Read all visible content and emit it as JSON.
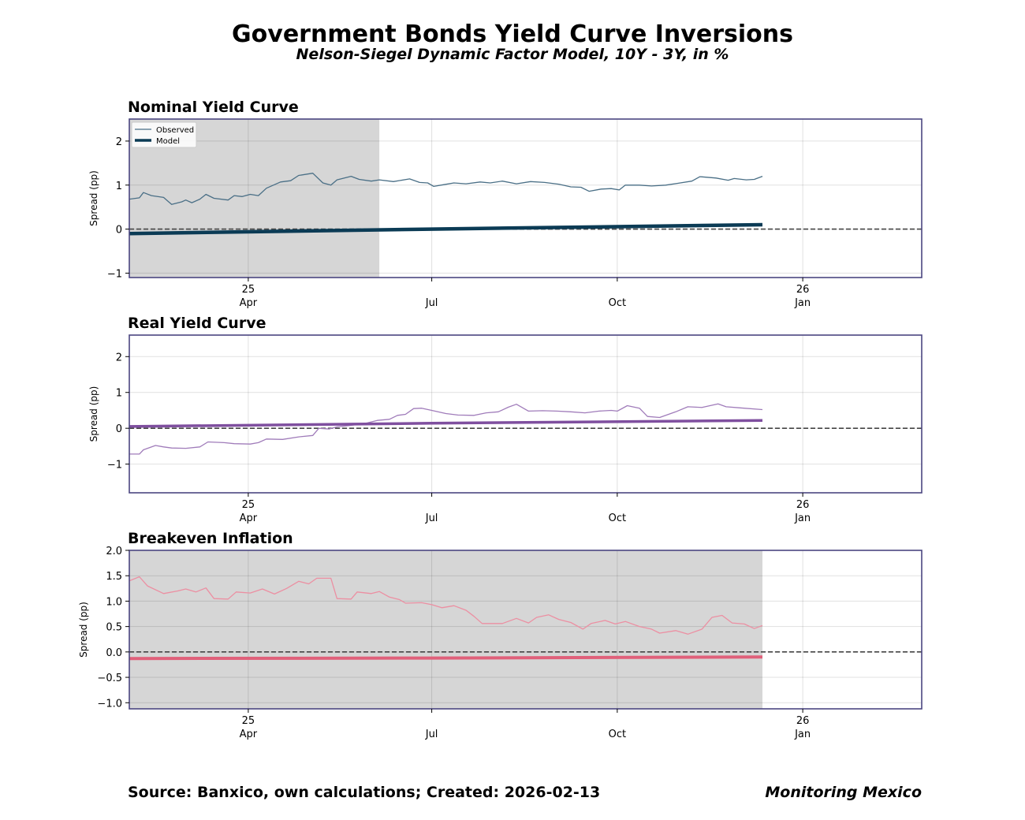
{
  "title": "Government Bonds Yield Curve Inversions",
  "subtitle": "Nelson-Siegel Dynamic Factor Model, 10Y - 3Y, in %",
  "footer": {
    "source": "Source: Banxico, own calculations; Created: 2026-02-13",
    "brand": "Monitoring Mexico"
  },
  "colors": {
    "frame": "#4b4680",
    "nominal": "#0b3b55",
    "nominal_observed": "#4a6f86",
    "real": "#7f4f9f",
    "real_observed": "#a07cba",
    "breakeven": "#e0607a",
    "breakeven_observed": "#ec8fa2",
    "shade": "#d6d6d6",
    "zero_line": "#444444",
    "grid": "#dddddd"
  },
  "chart_data": [
    {
      "type": "line",
      "title": "Nominal Yield Curve",
      "ylabel": "Spread (pp)",
      "xlim": [
        "2025-02-01",
        "2026-03-01"
      ],
      "ylim": [
        -1.1,
        2.5
      ],
      "yticks": [
        -1,
        0,
        1,
        2
      ],
      "xticks": [
        {
          "date": "2025-04-01",
          "labels": [
            "25",
            "Apr"
          ]
        },
        {
          "date": "2025-07-01",
          "labels": [
            "",
            "Jul"
          ]
        },
        {
          "date": "2025-10-01",
          "labels": [
            "",
            "Oct"
          ]
        },
        {
          "date": "2026-01-01",
          "labels": [
            "26",
            "Jan"
          ]
        }
      ],
      "grid": true,
      "zero_line": true,
      "legend": {
        "position": "top-left",
        "entries": [
          "Observed",
          "Model"
        ]
      },
      "shaded_range": [
        "2025-02-01",
        "2025-06-05"
      ],
      "series": [
        {
          "name": "Observed",
          "color": "#4a6f86",
          "width": 1.3,
          "points": [
            [
              "2025-02-01",
              0.68
            ],
            [
              "2025-02-06",
              0.71
            ],
            [
              "2025-02-08",
              0.83
            ],
            [
              "2025-02-12",
              0.76
            ],
            [
              "2025-02-18",
              0.72
            ],
            [
              "2025-02-22",
              0.56
            ],
            [
              "2025-02-27",
              0.62
            ],
            [
              "2025-03-01",
              0.66
            ],
            [
              "2025-03-04",
              0.6
            ],
            [
              "2025-03-08",
              0.68
            ],
            [
              "2025-03-11",
              0.79
            ],
            [
              "2025-03-15",
              0.7
            ],
            [
              "2025-03-22",
              0.66
            ],
            [
              "2025-03-25",
              0.76
            ],
            [
              "2025-03-29",
              0.74
            ],
            [
              "2025-04-02",
              0.79
            ],
            [
              "2025-04-06",
              0.76
            ],
            [
              "2025-04-10",
              0.93
            ],
            [
              "2025-04-17",
              1.07
            ],
            [
              "2025-04-22",
              1.1
            ],
            [
              "2025-04-26",
              1.22
            ],
            [
              "2025-05-03",
              1.27
            ],
            [
              "2025-05-08",
              1.05
            ],
            [
              "2025-05-12",
              1.0
            ],
            [
              "2025-05-15",
              1.12
            ],
            [
              "2025-05-22",
              1.2
            ],
            [
              "2025-05-26",
              1.13
            ],
            [
              "2025-06-01",
              1.09
            ],
            [
              "2025-06-05",
              1.12
            ],
            [
              "2025-06-12",
              1.08
            ],
            [
              "2025-06-20",
              1.14
            ],
            [
              "2025-06-25",
              1.06
            ],
            [
              "2025-06-29",
              1.05
            ],
            [
              "2025-07-02",
              0.97
            ],
            [
              "2025-07-07",
              1.01
            ],
            [
              "2025-07-12",
              1.05
            ],
            [
              "2025-07-18",
              1.03
            ],
            [
              "2025-07-25",
              1.07
            ],
            [
              "2025-07-30",
              1.05
            ],
            [
              "2025-08-05",
              1.09
            ],
            [
              "2025-08-12",
              1.03
            ],
            [
              "2025-08-19",
              1.08
            ],
            [
              "2025-08-26",
              1.06
            ],
            [
              "2025-09-02",
              1.02
            ],
            [
              "2025-09-08",
              0.96
            ],
            [
              "2025-09-13",
              0.95
            ],
            [
              "2025-09-17",
              0.86
            ],
            [
              "2025-09-23",
              0.91
            ],
            [
              "2025-09-28",
              0.92
            ],
            [
              "2025-10-02",
              0.89
            ],
            [
              "2025-10-05",
              1.0
            ],
            [
              "2025-10-12",
              1.0
            ],
            [
              "2025-10-18",
              0.98
            ],
            [
              "2025-10-25",
              1.0
            ],
            [
              "2025-10-31",
              1.04
            ],
            [
              "2025-11-07",
              1.09
            ],
            [
              "2025-11-11",
              1.19
            ],
            [
              "2025-11-19",
              1.16
            ],
            [
              "2025-11-25",
              1.11
            ],
            [
              "2025-11-28",
              1.15
            ],
            [
              "2025-12-04",
              1.12
            ],
            [
              "2025-12-08",
              1.13
            ],
            [
              "2025-12-12",
              1.2
            ]
          ]
        },
        {
          "name": "Model",
          "color": "#0b3b55",
          "width": 4.5,
          "points": [
            [
              "2025-02-01",
              -0.1
            ],
            [
              "2025-06-30",
              0.0
            ],
            [
              "2025-12-12",
              0.1
            ]
          ]
        }
      ]
    },
    {
      "type": "line",
      "title": "Real Yield Curve",
      "ylabel": "Spread (pp)",
      "xlim": [
        "2025-02-01",
        "2026-03-01"
      ],
      "ylim": [
        -1.8,
        2.6
      ],
      "yticks": [
        -1,
        0,
        1,
        2
      ],
      "xticks": [
        {
          "date": "2025-04-01",
          "labels": [
            "25",
            "Apr"
          ]
        },
        {
          "date": "2025-07-01",
          "labels": [
            "",
            "Jul"
          ]
        },
        {
          "date": "2025-10-01",
          "labels": [
            "",
            "Oct"
          ]
        },
        {
          "date": "2026-01-01",
          "labels": [
            "26",
            "Jan"
          ]
        }
      ],
      "grid": true,
      "zero_line": true,
      "series": [
        {
          "name": "Observed",
          "color": "#a07cba",
          "width": 1.3,
          "points": [
            [
              "2025-02-01",
              -0.72
            ],
            [
              "2025-02-06",
              -0.72
            ],
            [
              "2025-02-08",
              -0.6
            ],
            [
              "2025-02-14",
              -0.48
            ],
            [
              "2025-02-18",
              -0.52
            ],
            [
              "2025-02-22",
              -0.55
            ],
            [
              "2025-03-01",
              -0.56
            ],
            [
              "2025-03-08",
              -0.52
            ],
            [
              "2025-03-12",
              -0.38
            ],
            [
              "2025-03-20",
              -0.4
            ],
            [
              "2025-03-25",
              -0.43
            ],
            [
              "2025-04-02",
              -0.44
            ],
            [
              "2025-04-06",
              -0.4
            ],
            [
              "2025-04-10",
              -0.3
            ],
            [
              "2025-04-18",
              -0.31
            ],
            [
              "2025-04-26",
              -0.24
            ],
            [
              "2025-05-03",
              -0.2
            ],
            [
              "2025-05-06",
              0.0
            ],
            [
              "2025-05-11",
              -0.02
            ],
            [
              "2025-05-15",
              0.04
            ],
            [
              "2025-05-22",
              0.08
            ],
            [
              "2025-05-30",
              0.15
            ],
            [
              "2025-06-04",
              0.22
            ],
            [
              "2025-06-10",
              0.25
            ],
            [
              "2025-06-14",
              0.36
            ],
            [
              "2025-06-18",
              0.39
            ],
            [
              "2025-06-22",
              0.55
            ],
            [
              "2025-06-26",
              0.56
            ],
            [
              "2025-07-01",
              0.5
            ],
            [
              "2025-07-08",
              0.41
            ],
            [
              "2025-07-14",
              0.37
            ],
            [
              "2025-07-22",
              0.36
            ],
            [
              "2025-07-28",
              0.43
            ],
            [
              "2025-08-03",
              0.46
            ],
            [
              "2025-08-08",
              0.59
            ],
            [
              "2025-08-12",
              0.67
            ],
            [
              "2025-08-18",
              0.48
            ],
            [
              "2025-08-25",
              0.49
            ],
            [
              "2025-09-01",
              0.48
            ],
            [
              "2025-09-08",
              0.46
            ],
            [
              "2025-09-15",
              0.43
            ],
            [
              "2025-09-22",
              0.48
            ],
            [
              "2025-09-28",
              0.5
            ],
            [
              "2025-10-01",
              0.48
            ],
            [
              "2025-10-06",
              0.63
            ],
            [
              "2025-10-12",
              0.56
            ],
            [
              "2025-10-16",
              0.33
            ],
            [
              "2025-10-22",
              0.3
            ],
            [
              "2025-10-30",
              0.46
            ],
            [
              "2025-11-05",
              0.6
            ],
            [
              "2025-11-12",
              0.58
            ],
            [
              "2025-11-20",
              0.68
            ],
            [
              "2025-11-24",
              0.6
            ],
            [
              "2025-12-01",
              0.57
            ],
            [
              "2025-12-12",
              0.52
            ]
          ]
        },
        {
          "name": "Model",
          "color": "#7f4f9f",
          "width": 3.5,
          "points": [
            [
              "2025-02-01",
              0.05
            ],
            [
              "2025-07-01",
              0.14
            ],
            [
              "2025-12-12",
              0.22
            ]
          ]
        }
      ]
    },
    {
      "type": "line",
      "title": "Breakeven Inflation",
      "ylabel": "Spread (pp)",
      "xlim": [
        "2025-02-01",
        "2026-03-01"
      ],
      "ylim": [
        -1.12,
        2.0
      ],
      "yticks": [
        -1.0,
        -0.5,
        0.0,
        0.5,
        1.0,
        1.5,
        2.0
      ],
      "yticklabels": [
        "−1.0",
        "−0.5",
        "0.0",
        "0.5",
        "1.0",
        "1.5",
        "2.0"
      ],
      "xticks": [
        {
          "date": "2025-04-01",
          "labels": [
            "25",
            "Apr"
          ]
        },
        {
          "date": "2025-07-01",
          "labels": [
            "",
            "Jul"
          ]
        },
        {
          "date": "2025-10-01",
          "labels": [
            "",
            "Oct"
          ]
        },
        {
          "date": "2026-01-01",
          "labels": [
            "26",
            "Jan"
          ]
        }
      ],
      "grid": true,
      "zero_line": true,
      "shaded_range": [
        "2025-02-01",
        "2025-12-12"
      ],
      "series": [
        {
          "name": "Observed",
          "color": "#ec8fa2",
          "width": 1.3,
          "points": [
            [
              "2025-02-01",
              1.4
            ],
            [
              "2025-02-06",
              1.48
            ],
            [
              "2025-02-10",
              1.3
            ],
            [
              "2025-02-18",
              1.15
            ],
            [
              "2025-02-25",
              1.2
            ],
            [
              "2025-03-01",
              1.24
            ],
            [
              "2025-03-06",
              1.18
            ],
            [
              "2025-03-11",
              1.26
            ],
            [
              "2025-03-15",
              1.05
            ],
            [
              "2025-03-22",
              1.04
            ],
            [
              "2025-03-26",
              1.18
            ],
            [
              "2025-04-02",
              1.16
            ],
            [
              "2025-04-08",
              1.24
            ],
            [
              "2025-04-14",
              1.14
            ],
            [
              "2025-04-20",
              1.25
            ],
            [
              "2025-04-26",
              1.39
            ],
            [
              "2025-05-01",
              1.34
            ],
            [
              "2025-05-05",
              1.45
            ],
            [
              "2025-05-12",
              1.45
            ],
            [
              "2025-05-15",
              1.05
            ],
            [
              "2025-05-22",
              1.04
            ],
            [
              "2025-05-25",
              1.18
            ],
            [
              "2025-06-01",
              1.15
            ],
            [
              "2025-06-05",
              1.19
            ],
            [
              "2025-06-10",
              1.08
            ],
            [
              "2025-06-15",
              1.03
            ],
            [
              "2025-06-18",
              0.96
            ],
            [
              "2025-06-26",
              0.97
            ],
            [
              "2025-07-01",
              0.93
            ],
            [
              "2025-07-06",
              0.87
            ],
            [
              "2025-07-12",
              0.91
            ],
            [
              "2025-07-18",
              0.82
            ],
            [
              "2025-07-22",
              0.7
            ],
            [
              "2025-07-26",
              0.56
            ],
            [
              "2025-08-05",
              0.56
            ],
            [
              "2025-08-12",
              0.66
            ],
            [
              "2025-08-18",
              0.57
            ],
            [
              "2025-08-22",
              0.68
            ],
            [
              "2025-08-28",
              0.73
            ],
            [
              "2025-09-02",
              0.64
            ],
            [
              "2025-09-08",
              0.58
            ],
            [
              "2025-09-14",
              0.45
            ],
            [
              "2025-09-18",
              0.56
            ],
            [
              "2025-09-25",
              0.62
            ],
            [
              "2025-09-30",
              0.55
            ],
            [
              "2025-10-05",
              0.6
            ],
            [
              "2025-10-12",
              0.5
            ],
            [
              "2025-10-18",
              0.45
            ],
            [
              "2025-10-22",
              0.37
            ],
            [
              "2025-10-30",
              0.42
            ],
            [
              "2025-11-05",
              0.35
            ],
            [
              "2025-11-12",
              0.45
            ],
            [
              "2025-11-17",
              0.68
            ],
            [
              "2025-11-22",
              0.72
            ],
            [
              "2025-11-27",
              0.57
            ],
            [
              "2025-12-03",
              0.55
            ],
            [
              "2025-12-08",
              0.46
            ],
            [
              "2025-12-12",
              0.52
            ]
          ]
        },
        {
          "name": "Model",
          "color": "#e0607a",
          "width": 4.0,
          "points": [
            [
              "2025-02-01",
              -0.13
            ],
            [
              "2025-07-01",
              -0.12
            ],
            [
              "2025-12-12",
              -0.1
            ]
          ]
        }
      ]
    }
  ]
}
